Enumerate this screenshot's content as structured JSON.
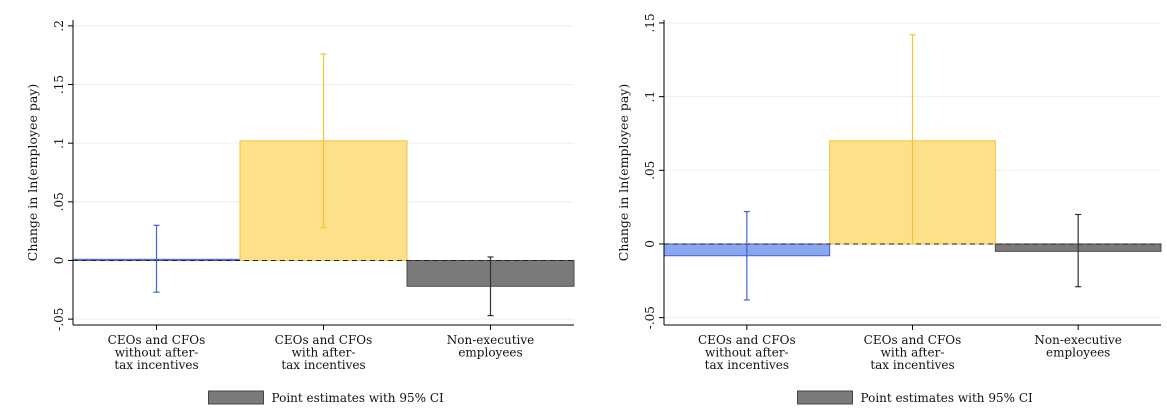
{
  "chart_data": [
    {
      "type": "bar",
      "ylabel": "Change in ln(employee pay)",
      "ylim": [
        -0.055,
        0.205
      ],
      "yticks": [
        -0.05,
        0,
        0.05,
        0.1,
        0.15,
        0.2
      ],
      "ytick_labels": [
        "-.05",
        "0",
        ".05",
        ".1",
        ".15",
        ".2"
      ],
      "grid": true,
      "categories": [
        [
          "CEOs and CFOs",
          "without after-",
          "tax incentives"
        ],
        [
          "CEOs and CFOs",
          "with after-",
          "tax incentives"
        ],
        [
          "Non-executive",
          "employees"
        ]
      ],
      "values": [
        0.001,
        0.102,
        -0.022
      ],
      "ci_low": [
        -0.027,
        0.028,
        -0.047
      ],
      "ci_high": [
        0.03,
        0.176,
        0.003
      ],
      "bar_colors": [
        "#8aa6ee",
        "#fde08a",
        "#7a7a7a"
      ],
      "edge_colors": [
        "#3f63d6",
        "#f1c436",
        "#4a4a4a"
      ],
      "errorbar_colors": [
        "#3f63d6",
        "#f1c436",
        "#333333"
      ],
      "legend": {
        "label": "Point estimates with 95% CI",
        "swatch": "#7a7a7a",
        "position": "bottom"
      }
    },
    {
      "type": "bar",
      "ylabel": "Change in ln(employee pay)",
      "ylim": [
        -0.055,
        0.152
      ],
      "yticks": [
        -0.05,
        0,
        0.05,
        0.1,
        0.15
      ],
      "ytick_labels": [
        "-.05",
        "0",
        ".05",
        ".1",
        ".15"
      ],
      "grid": true,
      "categories": [
        [
          "CEOs and CFOs",
          "without after-",
          "tax incentives"
        ],
        [
          "CEOs and CFOs",
          "with after-",
          "tax incentives"
        ],
        [
          "Non-executive",
          "employees"
        ]
      ],
      "values": [
        -0.008,
        0.07,
        -0.005
      ],
      "ci_low": [
        -0.038,
        0.0,
        -0.029
      ],
      "ci_high": [
        0.022,
        0.142,
        0.02
      ],
      "bar_colors": [
        "#8aa6ee",
        "#fde08a",
        "#7a7a7a"
      ],
      "edge_colors": [
        "#3f63d6",
        "#f1c436",
        "#4a4a4a"
      ],
      "errorbar_colors": [
        "#3f63d6",
        "#f1c436",
        "#333333"
      ],
      "legend": {
        "label": "Point estimates with 95% CI",
        "swatch": "#7a7a7a",
        "position": "bottom"
      }
    }
  ]
}
